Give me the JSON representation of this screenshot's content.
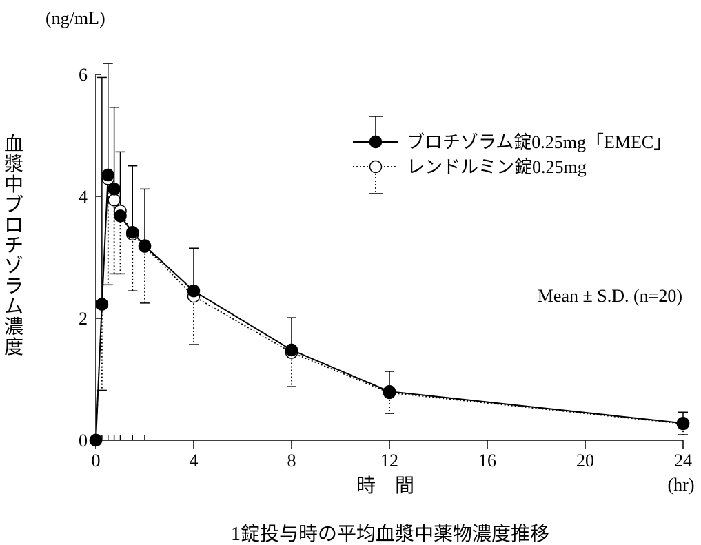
{
  "chart_data": {
    "type": "line",
    "title": "",
    "caption": "1錠投与時の平均血漿中薬物濃度推移",
    "xlabel": "時　間",
    "xunit": "(hr)",
    "ylabel": "血漿中ブロチゾラム濃度",
    "yunit": "(ng/mL)",
    "xlim": [
      0,
      24
    ],
    "ylim": [
      0,
      6
    ],
    "xticks": [
      0,
      4,
      8,
      12,
      16,
      20,
      24
    ],
    "yticks": [
      0,
      2,
      4,
      6
    ],
    "minor_xticks": [
      0.25,
      0.5,
      0.75,
      1,
      1.5,
      2
    ],
    "annotation": "Mean ± S.D. (n=20)",
    "legend_position": "top-right",
    "series": [
      {
        "name": "ブロチゾラム錠0.25mg「EMEC」",
        "marker": "filled-circle",
        "line": "solid",
        "x": [
          0,
          0.25,
          0.5,
          0.75,
          1,
          1.5,
          2,
          4,
          8,
          12,
          24
        ],
        "y": [
          0,
          2.23,
          4.35,
          4.12,
          3.68,
          3.41,
          3.19,
          2.45,
          1.48,
          0.8,
          0.28
        ],
        "sd_upper": [
          0,
          5.95,
          6.18,
          5.46,
          4.73,
          4.5,
          4.12,
          3.15,
          2.01,
          1.13,
          0.46
        ]
      },
      {
        "name": "レンドルミン錠0.25mg",
        "marker": "open-circle",
        "line": "dotted",
        "x": [
          0,
          0.25,
          0.5,
          0.75,
          1,
          1.5,
          2,
          4,
          8,
          12,
          24
        ],
        "y": [
          0,
          2.23,
          4.29,
          3.94,
          3.76,
          3.38,
          3.18,
          2.36,
          1.44,
          0.78,
          0.27
        ],
        "sd_lower": [
          0,
          0.82,
          2.55,
          2.73,
          2.73,
          2.45,
          2.25,
          1.57,
          0.88,
          0.44,
          0.09
        ]
      }
    ]
  }
}
